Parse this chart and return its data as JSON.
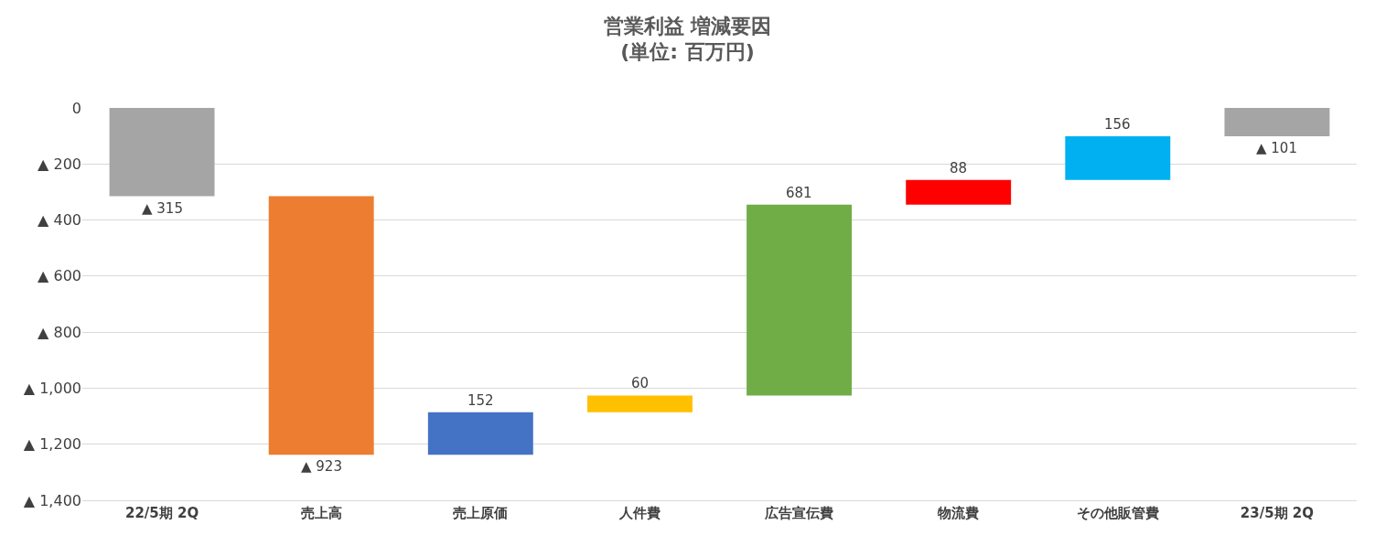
{
  "chart_data": {
    "type": "bar",
    "title": "営業利益 増減要因",
    "subtitle": "(単位: 百万円)",
    "categories": [
      "22/5期 2Q",
      "売上高",
      "売上原価",
      "人件費",
      "広告宣伝費",
      "物流費",
      "その他販管費",
      "23/5期 2Q"
    ],
    "values": [
      -315,
      -923,
      152,
      60,
      681,
      88,
      156,
      -101
    ],
    "base": [
      0,
      -315,
      -1238,
      -1086,
      -1026,
      -345,
      -257,
      0
    ],
    "colors": [
      "#a5a5a5",
      "#ed7d31",
      "#4472c4",
      "#ffc000",
      "#70ad47",
      "#ff0000",
      "#00b0f0",
      "#a5a5a5"
    ],
    "value_labels": [
      "▲ 315",
      "▲ 923",
      "152",
      "60",
      "681",
      "88",
      "156",
      "▲ 101"
    ],
    "ylim": [
      -1400,
      0
    ],
    "yticks": [
      0,
      {
        "value": -200,
        "label": "▲ 200"
      },
      {
        "value": -400,
        "label": "▲ 400"
      },
      {
        "value": -600,
        "label": "▲ 600"
      },
      {
        "value": -800,
        "label": "▲ 800"
      },
      {
        "value": -1000,
        "label": "▲ 1,000"
      },
      {
        "value": -1200,
        "label": "▲ 1,200"
      },
      {
        "value": -1400,
        "label": "▲ 1,400"
      }
    ],
    "grid": "y"
  }
}
